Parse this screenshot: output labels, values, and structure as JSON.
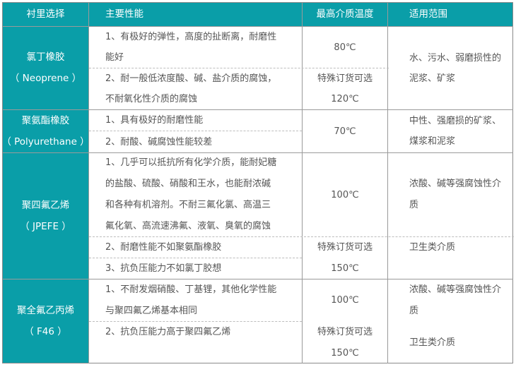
{
  "header": {
    "col1": "衬里选择",
    "col2": "主要性能",
    "col3": "最高介质温度",
    "col4": "适用范围"
  },
  "colors": {
    "accent": "#0a9ea8",
    "text": "#555555"
  },
  "groups": [
    {
      "name": "氯丁橡胶",
      "alias": "（ Neoprene ）",
      "props": [
        [
          "1、有极好的弹性，高度的扯断离，耐磨性",
          "能好"
        ],
        [
          "2、耐一般低浓度酸、碱、盐介质的腐蚀，",
          "不耐氧化性介质的腐蚀"
        ]
      ],
      "temps": [
        [
          "80℃"
        ],
        [
          "特殊订货可选",
          "120℃"
        ]
      ],
      "scope": [
        [
          "水、污水、弱磨损性的",
          "泥浆、矿浆"
        ]
      ]
    },
    {
      "name": "聚氨酯橡胶",
      "alias": "（ Polyurethane ）",
      "props": [
        [
          "1、具有极好的耐磨性能"
        ],
        [
          "2、耐酸、碱腐蚀性能较差"
        ]
      ],
      "temps": [
        [
          "70℃"
        ]
      ],
      "scope": [
        [
          "中性、强磨损的矿浆、",
          "煤浆和泥浆"
        ]
      ]
    },
    {
      "name": "聚四氟乙烯",
      "alias": "（ JPEFE ）",
      "props": [
        [
          "1、几乎可以抵抗所有化学介质，能耐妃糖",
          "的盐酸、硫酸、硝酸和王水，也能耐浓碱",
          "和各种有机溶剂。不耐三氟化氯、高温三",
          "氟化氧、高流速沸氟、液氧、臭氧的腐蚀"
        ],
        [
          "2、耐磨性能不如聚氨酯橡胶"
        ],
        [
          "3、抗负压能力不如氯丁胶想"
        ]
      ],
      "temps": [
        [
          "100℃"
        ],
        [
          "特殊订货可选",
          "150℃"
        ]
      ],
      "scope": [
        [
          "浓酸、碱等强腐蚀性介",
          "质"
        ],
        [
          "卫生类介质"
        ]
      ]
    },
    {
      "name": "聚全氟乙丙烯",
      "alias": "（ F46 ）",
      "props": [
        [
          "1、不耐发烟硝酸、丁基锂，其他化学性能",
          "与聚四氟乙烯基本相同"
        ],
        [
          "2、抗负压能力高于聚四氟乙烯"
        ]
      ],
      "temps": [
        [
          "100℃"
        ],
        [
          "特殊订货可选",
          "150℃"
        ]
      ],
      "scope": [
        [
          "浓酸、碱等强腐蚀性介",
          "质"
        ],
        [
          "卫生类介质"
        ]
      ]
    }
  ]
}
